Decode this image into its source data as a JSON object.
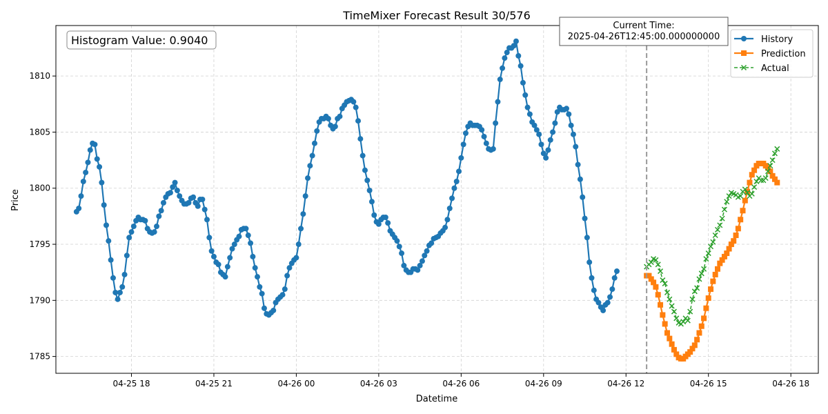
{
  "chart_data": {
    "type": "line",
    "title": "TimeMixer Forecast Result 30/576",
    "xlabel": "Datetime",
    "ylabel": "Price",
    "x_tick_labels": [
      "04-25 18",
      "04-25 21",
      "04-26 00",
      "04-26 03",
      "04-26 06",
      "04-26 09",
      "04-26 12",
      "04-26 15",
      "04-26 18"
    ],
    "x_tick_hours": [
      18,
      21,
      24,
      27,
      30,
      33,
      36,
      39,
      42
    ],
    "xlim_hours": [
      15.25,
      43.0
    ],
    "ylim": [
      1783.5,
      1814.5
    ],
    "y_ticks": [
      1785,
      1790,
      1795,
      1800,
      1805,
      1810
    ],
    "x_start": "2025-04-25 16:00",
    "x_step_minutes": 5,
    "grid": true,
    "legend_position": "top-right",
    "annotation_current_time": {
      "line1": "Current Time:",
      "line2": "2025-04-26T12:45:00.000000000",
      "x_hours": 36.75
    },
    "histogram_text": "Histogram Value: 0.9040",
    "series": [
      {
        "name": "History",
        "color": "#1f77b4",
        "marker": "circle",
        "start_index": 0,
        "values": [
          1797.9,
          1798.2,
          1799.3,
          1800.6,
          1801.4,
          1802.3,
          1803.4,
          1804.0,
          1803.9,
          1802.6,
          1801.9,
          1800.5,
          1798.5,
          1796.7,
          1795.3,
          1793.6,
          1792.0,
          1790.7,
          1790.1,
          1790.7,
          1791.2,
          1792.3,
          1794.0,
          1795.6,
          1796.1,
          1796.6,
          1797.1,
          1797.4,
          1797.2,
          1797.2,
          1797.1,
          1796.4,
          1796.1,
          1796.0,
          1796.1,
          1796.6,
          1797.5,
          1798.0,
          1798.7,
          1799.2,
          1799.5,
          1799.6,
          1800.1,
          1800.5,
          1799.8,
          1799.3,
          1798.9,
          1798.6,
          1798.6,
          1798.7,
          1799.1,
          1799.2,
          1798.7,
          1798.4,
          1799.0,
          1799.0,
          1798.1,
          1797.2,
          1795.6,
          1794.4,
          1793.9,
          1793.4,
          1793.2,
          1792.5,
          1792.3,
          1792.1,
          1793.0,
          1793.8,
          1794.6,
          1795.0,
          1795.4,
          1795.7,
          1796.3,
          1796.4,
          1796.4,
          1795.8,
          1795.1,
          1793.9,
          1792.9,
          1792.1,
          1791.2,
          1790.6,
          1789.3,
          1788.8,
          1788.7,
          1788.9,
          1789.1,
          1789.8,
          1790.1,
          1790.3,
          1790.5,
          1791.0,
          1792.2,
          1792.9,
          1793.3,
          1793.6,
          1793.8,
          1795.0,
          1796.4,
          1797.7,
          1799.3,
          1800.9,
          1802.0,
          1802.9,
          1804.0,
          1805.1,
          1805.9,
          1806.2,
          1806.2,
          1806.4,
          1806.2,
          1805.6,
          1805.3,
          1805.5,
          1806.2,
          1806.4,
          1807.1,
          1807.4,
          1807.7,
          1807.8,
          1807.9,
          1807.7,
          1807.2,
          1806.0,
          1804.4,
          1802.9,
          1801.6,
          1800.7,
          1799.8,
          1798.8,
          1797.6,
          1797.0,
          1796.8,
          1797.2,
          1797.4,
          1797.4,
          1796.9,
          1796.2,
          1795.9,
          1795.6,
          1795.3,
          1794.8,
          1794.2,
          1793.1,
          1792.7,
          1792.5,
          1792.5,
          1792.8,
          1792.8,
          1792.7,
          1793.1,
          1793.5,
          1794.0,
          1794.4,
          1794.9,
          1795.1,
          1795.5,
          1795.6,
          1795.7,
          1796.0,
          1796.2,
          1796.5,
          1797.2,
          1798.2,
          1799.1,
          1800.0,
          1800.6,
          1801.5,
          1802.7,
          1803.9,
          1804.9,
          1805.5,
          1805.8,
          1805.6,
          1805.6,
          1805.6,
          1805.5,
          1805.2,
          1804.6,
          1804.0,
          1803.5,
          1803.4,
          1803.5,
          1805.8,
          1807.7,
          1809.7,
          1810.7,
          1811.6,
          1812.1,
          1812.5,
          1812.5,
          1812.7,
          1813.1,
          1811.8,
          1810.9,
          1809.4,
          1808.3,
          1807.2,
          1806.6,
          1805.9,
          1805.6,
          1805.2,
          1804.8,
          1803.9,
          1803.1,
          1802.7,
          1803.4,
          1804.3,
          1805.0,
          1805.8,
          1806.8,
          1807.2,
          1807.0,
          1807.0,
          1807.1,
          1806.6,
          1805.6,
          1804.8,
          1803.7,
          1802.1,
          1800.8,
          1799.2,
          1797.3,
          1795.6,
          1793.4,
          1792.0,
          1790.9,
          1790.1,
          1789.8,
          1789.4,
          1789.1,
          1789.6,
          1789.8,
          1790.3,
          1791.0,
          1792.0,
          1792.6
        ]
      },
      {
        "name": "Prediction",
        "color": "#ff7f0e",
        "marker": "square",
        "start_index": 249,
        "values": [
          1792.2,
          1792.2,
          1791.9,
          1791.6,
          1791.2,
          1790.5,
          1789.6,
          1788.7,
          1787.9,
          1787.1,
          1786.6,
          1786.1,
          1785.6,
          1785.2,
          1784.9,
          1784.8,
          1784.8,
          1785.0,
          1785.2,
          1785.4,
          1785.7,
          1786.0,
          1786.5,
          1787.1,
          1787.7,
          1788.4,
          1789.3,
          1790.2,
          1791.0,
          1791.7,
          1792.3,
          1792.8,
          1793.3,
          1793.6,
          1793.9,
          1794.2,
          1794.6,
          1795.0,
          1795.3,
          1795.8,
          1796.4,
          1797.2,
          1798.0,
          1798.9,
          1799.7,
          1800.5,
          1801.2,
          1801.6,
          1802.0,
          1802.2,
          1802.2,
          1802.2,
          1802.0,
          1801.8,
          1801.5,
          1801.1,
          1800.8,
          1800.5
        ]
      },
      {
        "name": "Actual",
        "color": "#2ca02c",
        "marker": "x",
        "start_index": 249,
        "values": [
          1793.0,
          1793.2,
          1793.4,
          1793.7,
          1793.6,
          1793.2,
          1792.6,
          1791.8,
          1791.5,
          1790.7,
          1790.1,
          1789.5,
          1789.0,
          1788.4,
          1788.0,
          1787.9,
          1788.1,
          1788.4,
          1788.2,
          1789.0,
          1790.1,
          1790.8,
          1791.1,
          1791.9,
          1792.4,
          1792.8,
          1793.7,
          1794.2,
          1794.8,
          1795.2,
          1795.8,
          1796.3,
          1796.7,
          1797.3,
          1798.1,
          1798.8,
          1799.3,
          1799.6,
          1799.5,
          1799.4,
          1799.2,
          1799.3,
          1799.7,
          1799.9,
          1799.6,
          1799.3,
          1799.5,
          1800.1,
          1800.6,
          1800.9,
          1800.7,
          1800.7,
          1800.9,
          1801.5,
          1802.0,
          1802.5,
          1803.1,
          1803.5
        ]
      }
    ]
  }
}
